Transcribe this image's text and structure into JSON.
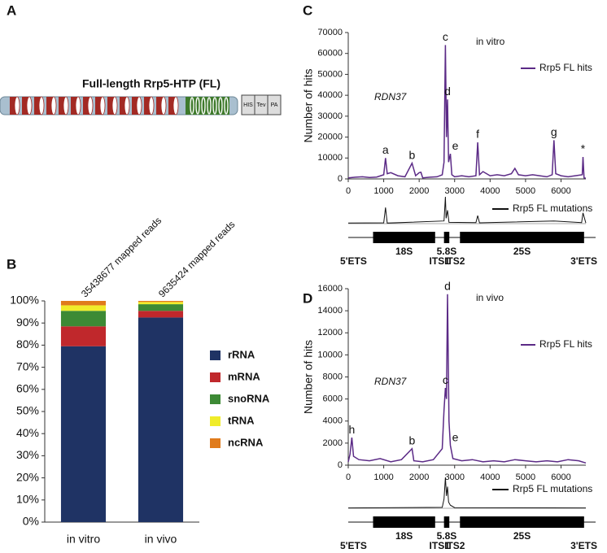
{
  "panel_labels": [
    "A",
    "B",
    "C",
    "D"
  ],
  "protein": {
    "title": "Full-length Rrp5-HTP (FL)",
    "tags": [
      "HIS",
      "Tev",
      "PA"
    ]
  },
  "chart_data": [
    {
      "type": "stacked_bar",
      "categories": [
        "in vitro",
        "in vivo"
      ],
      "annotations": [
        "35438677 mapped reads",
        "9635424 mapped reads"
      ],
      "series": [
        {
          "name": "rRNA",
          "color": "#1f3364",
          "values": [
            79.5,
            92.5
          ]
        },
        {
          "name": "mRNA",
          "color": "#c0282c",
          "values": [
            9,
            3
          ]
        },
        {
          "name": "snoRNA",
          "color": "#3d8a35",
          "values": [
            7,
            3
          ]
        },
        {
          "name": "tRNA",
          "color": "#f0ec2a",
          "values": [
            2.5,
            1
          ]
        },
        {
          "name": "ncRNA",
          "color": "#e07b1c",
          "values": [
            2,
            0.5
          ]
        }
      ],
      "ylim": [
        0,
        100
      ],
      "yticks": [
        {
          "value": 0,
          "label": "0%"
        },
        {
          "value": 10,
          "label": "10%"
        },
        {
          "value": 20,
          "label": "20%"
        },
        {
          "value": 30,
          "label": "30%"
        },
        {
          "value": 40,
          "label": "40%"
        },
        {
          "value": 50,
          "label": "50%"
        },
        {
          "value": 60,
          "label": "60%"
        },
        {
          "value": 70,
          "label": "70%"
        },
        {
          "value": 80,
          "label": "80%"
        },
        {
          "value": 90,
          "label": "90%"
        },
        {
          "value": 100,
          "label": "100%"
        }
      ]
    },
    {
      "type": "line",
      "y_label": "Number of hits",
      "annotations": [
        "in vitro",
        "RDN37"
      ],
      "series": [
        {
          "name": "Rrp5 FL hits",
          "color": "#5b2a86",
          "x": [
            0,
            200,
            400,
            600,
            800,
            1000,
            1050,
            1100,
            1200,
            1400,
            1600,
            1800,
            1900,
            2000,
            2050,
            2100,
            2300,
            2500,
            2650,
            2700,
            2740,
            2770,
            2800,
            2830,
            2880,
            2920,
            3000,
            3200,
            3400,
            3600,
            3650,
            3700,
            3800,
            4000,
            4200,
            4400,
            4600,
            4700,
            4800,
            5000,
            5200,
            5400,
            5600,
            5750,
            5800,
            5850,
            6000,
            6200,
            6400,
            6600,
            6620,
            6650,
            6700
          ],
          "values": [
            500,
            800,
            1000,
            700,
            900,
            2000,
            10000,
            2500,
            3000,
            1500,
            1000,
            7500,
            1500,
            3000,
            3200,
            500,
            800,
            1000,
            2000,
            8000,
            64000,
            20000,
            38000,
            8000,
            12000,
            2000,
            1000,
            1500,
            1000,
            1500,
            17500,
            2000,
            3500,
            1500,
            2000,
            1500,
            2500,
            5000,
            2000,
            1500,
            2000,
            1500,
            1000,
            2000,
            18500,
            2500,
            1500,
            1000,
            1500,
            2000,
            10500,
            500,
            300
          ]
        }
      ],
      "peak_labels": [
        {
          "label": "a",
          "x": 1050
        },
        {
          "label": "b",
          "x": 1800
        },
        {
          "label": "c",
          "x": 2740
        },
        {
          "label": "d",
          "x": 2800
        },
        {
          "label": "e",
          "x": 2880
        },
        {
          "label": "f",
          "x": 3650
        },
        {
          "label": "g",
          "x": 5800
        },
        {
          "label": "*",
          "x": 6620
        }
      ],
      "mutations": {
        "name": "Rrp5 FL mutations",
        "color": "#111",
        "x": [
          0,
          1000,
          1050,
          1100,
          2700,
          2740,
          2760,
          2800,
          2840,
          3600,
          3650,
          3700,
          5800,
          6580,
          6620,
          6700
        ],
        "values": [
          2,
          3,
          60,
          2,
          10,
          100,
          20,
          50,
          5,
          4,
          30,
          3,
          10,
          4,
          40,
          2
        ]
      },
      "gene_map": [
        {
          "label": "5'ETS",
          "start": 0,
          "end": 700,
          "box": false
        },
        {
          "label": "18S",
          "start": 700,
          "end": 2450,
          "box": true
        },
        {
          "label": "ITS1",
          "start": 2450,
          "end": 2700,
          "box": false
        },
        {
          "label": "5.8S",
          "start": 2700,
          "end": 2850,
          "box": true
        },
        {
          "label": "ITS2",
          "start": 2850,
          "end": 3150,
          "box": false
        },
        {
          "label": "25S",
          "start": 3150,
          "end": 6650,
          "box": true
        },
        {
          "label": "3'ETS",
          "start": 6650,
          "end": 6700,
          "box": false
        }
      ],
      "xlim": [
        0,
        6700
      ],
      "xticks": [
        0,
        1000,
        2000,
        3000,
        4000,
        5000,
        6000
      ],
      "ylim": [
        0,
        70000
      ],
      "yticks": [
        0,
        10000,
        20000,
        30000,
        40000,
        50000,
        60000,
        70000
      ]
    },
    {
      "type": "line",
      "y_label": "Number of hits",
      "annotations": [
        "in vivo",
        "RDN37"
      ],
      "series": [
        {
          "name": "Rrp5 FL hits",
          "color": "#5b2a86",
          "x": [
            0,
            50,
            100,
            150,
            300,
            600,
            900,
            1200,
            1500,
            1800,
            1850,
            2100,
            2400,
            2650,
            2700,
            2740,
            2770,
            2800,
            2840,
            2880,
            2950,
            3200,
            3500,
            3800,
            4100,
            4400,
            4700,
            5000,
            5300,
            5600,
            5900,
            6200,
            6500,
            6700
          ],
          "values": [
            300,
            1000,
            2500,
            800,
            500,
            400,
            600,
            300,
            500,
            1500,
            400,
            300,
            500,
            1500,
            5000,
            7000,
            6000,
            15500,
            4000,
            1800,
            600,
            400,
            500,
            300,
            400,
            300,
            500,
            400,
            300,
            400,
            300,
            500,
            400,
            200
          ]
        }
      ],
      "peak_labels": [
        {
          "label": "h",
          "x": 100
        },
        {
          "label": "b",
          "x": 1800
        },
        {
          "label": "c",
          "x": 2740
        },
        {
          "label": "d",
          "x": 2800
        },
        {
          "label": "e",
          "x": 2880
        }
      ],
      "mutations": {
        "name": "Rrp5 FL mutations",
        "color": "#111",
        "x": [
          0,
          2650,
          2700,
          2740,
          2770,
          2800,
          2830,
          2880,
          3000,
          6700
        ],
        "values": [
          1,
          3,
          30,
          100,
          40,
          70,
          20,
          10,
          2,
          1
        ]
      },
      "gene_map": [
        {
          "label": "5'ETS",
          "start": 0,
          "end": 700,
          "box": false
        },
        {
          "label": "18S",
          "start": 700,
          "end": 2450,
          "box": true
        },
        {
          "label": "ITS1",
          "start": 2450,
          "end": 2700,
          "box": false
        },
        {
          "label": "5.8S",
          "start": 2700,
          "end": 2850,
          "box": true
        },
        {
          "label": "ITS2",
          "start": 2850,
          "end": 3150,
          "box": false
        },
        {
          "label": "25S",
          "start": 3150,
          "end": 6650,
          "box": true
        },
        {
          "label": "3'ETS",
          "start": 6650,
          "end": 6700,
          "box": false
        }
      ],
      "xlim": [
        0,
        6700
      ],
      "xticks": [
        0,
        1000,
        2000,
        3000,
        4000,
        5000,
        6000
      ],
      "ylim": [
        0,
        16000
      ],
      "yticks": [
        0,
        2000,
        4000,
        6000,
        8000,
        10000,
        12000,
        14000,
        16000
      ]
    }
  ]
}
